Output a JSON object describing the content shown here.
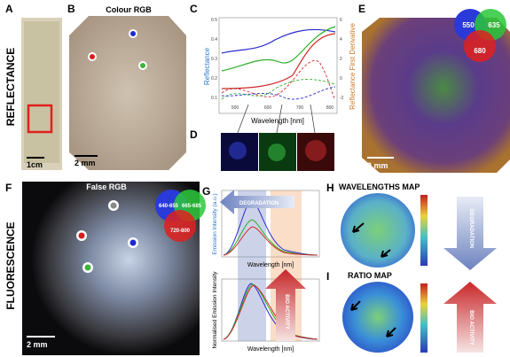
{
  "rows": {
    "reflectance": "REFLECTANCE",
    "fluorescence": "FLUORESCENCE"
  },
  "panels": {
    "A": {
      "letter": "A",
      "scale": "1cm"
    },
    "B": {
      "letter": "B",
      "title": "Colour RGB",
      "scale": "2 mm"
    },
    "C": {
      "letter": "C",
      "y_label": "Reflectance",
      "y2_label": "Reflectance First Derivative",
      "x_label": "Wavelength [nm]",
      "x_ticks": [
        "500",
        "600",
        "700",
        "800"
      ],
      "y_ticks": [
        "0.1",
        "0.2",
        "0.3",
        "0.4",
        "0.5"
      ],
      "y2_ticks": [
        "-2",
        "0",
        "2",
        "4",
        "6"
      ]
    },
    "D": {
      "letter": "D"
    },
    "E": {
      "letter": "E",
      "title": "False RGB",
      "channels": [
        "550",
        "635",
        "680"
      ],
      "scale": "2 mm"
    },
    "F": {
      "letter": "F",
      "title": "False RGB",
      "channels": [
        "640-655",
        "665-685",
        "720-800"
      ],
      "scale": "2 mm"
    },
    "G": {
      "letter": "G",
      "arrow_top": "DEGRADATION",
      "top_y_label": "Emission Intensity (a.u.)",
      "top_x_label": "Wavelength [nm]",
      "bottom_y_label": "Normalised Emission Intensity",
      "bottom_x_label": "Wavelength [nm]",
      "arrow_bottom": "BIO ACTIVITY"
    },
    "H": {
      "letter": "H",
      "title": "WAVELENGTHS MAP",
      "arrow": "DEGRADATION"
    },
    "I": {
      "letter": "I",
      "title": "RATIO MAP",
      "arrow": "BIO ACTIVITY"
    }
  }
}
